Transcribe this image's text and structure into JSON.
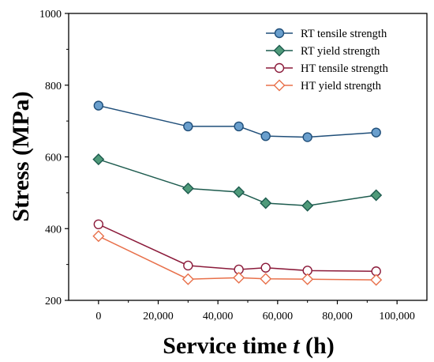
{
  "chart_data": {
    "type": "line",
    "xlabel_main": "Service time ",
    "xlabel_var": "t",
    "xlabel_unit": " (h)",
    "ylabel": "Stress (MPa)",
    "xlim": [
      -10000,
      110000
    ],
    "ylim": [
      200,
      1000
    ],
    "x_ticks": [
      0,
      20000,
      40000,
      60000,
      80000,
      100000
    ],
    "x_tick_labels": [
      "0",
      "20,000",
      "40,000",
      "60,000",
      "80,000",
      "100,000"
    ],
    "y_ticks": [
      200,
      400,
      600,
      800,
      1000
    ],
    "y_tick_labels": [
      "200",
      "400",
      "600",
      "800",
      "1000"
    ],
    "grid": false,
    "legend_position": "top-right",
    "x": [
      0,
      30000,
      47000,
      56000,
      70000,
      93000
    ],
    "series": [
      {
        "name": "RT tensile strength",
        "values": [
          743,
          685,
          685,
          658,
          655,
          668
        ],
        "color": "#1f4e79",
        "fill": "#6a9fcd",
        "marker": "circle"
      },
      {
        "name": "RT yield strength",
        "values": [
          593,
          512,
          502,
          471,
          464,
          493
        ],
        "color": "#1d5b4e",
        "fill": "#4f9a7a",
        "marker": "diamond"
      },
      {
        "name": "HT tensile strength",
        "values": [
          412,
          297,
          286,
          291,
          283,
          281
        ],
        "color": "#8b1a3a",
        "fill": "#ffffff",
        "marker": "circle"
      },
      {
        "name": "HT yield strength",
        "values": [
          379,
          259,
          263,
          260,
          259,
          257
        ],
        "color": "#e8704a",
        "fill": "#ffffff",
        "marker": "diamond"
      }
    ]
  }
}
